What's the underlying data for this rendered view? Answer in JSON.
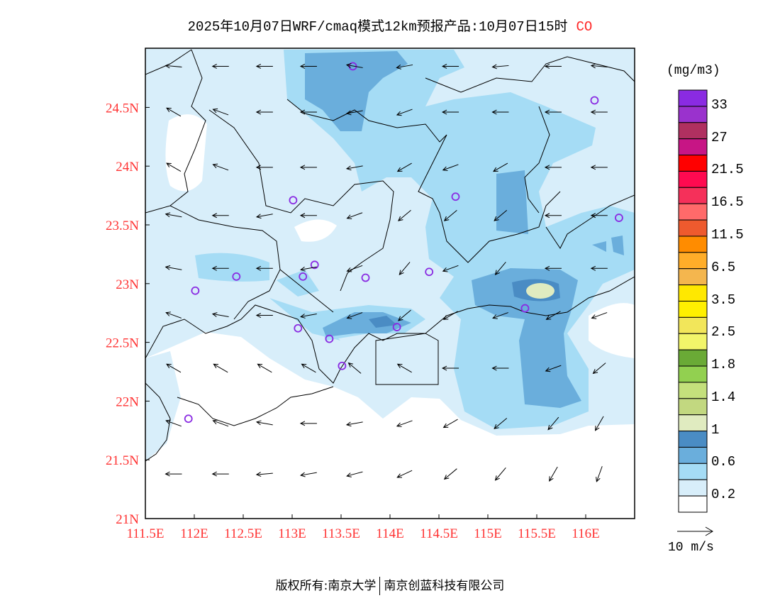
{
  "title": {
    "main": "2025年10月07日WRF/cmaq模式12km预报产品:10月07日15时",
    "species": "CO"
  },
  "colors": {
    "tick_label": "#ff3333",
    "species": "#ff2a2a"
  },
  "map": {
    "lon_range": [
      111.5,
      116.5
    ],
    "lat_range": [
      21.0,
      25.0
    ],
    "x_ticks": [
      "111.5E",
      "112E",
      "112.5E",
      "113E",
      "113.5E",
      "114E",
      "114.5E",
      "115E",
      "115.5E",
      "116E"
    ],
    "x_tick_values": [
      111.5,
      112,
      112.5,
      113,
      113.5,
      114,
      114.5,
      115,
      115.5,
      116
    ],
    "y_ticks": [
      "24.5N",
      "24N",
      "23.5N",
      "23N",
      "22.5N",
      "22N",
      "21.5N",
      "21N"
    ],
    "y_tick_values": [
      24.5,
      24,
      23.5,
      23,
      22.5,
      22,
      21.5,
      21
    ],
    "stations": [
      {
        "lon": 113.62,
        "lat": 24.85
      },
      {
        "lon": 116.09,
        "lat": 24.56
      },
      {
        "lon": 113.01,
        "lat": 23.71
      },
      {
        "lon": 114.67,
        "lat": 23.74
      },
      {
        "lon": 116.34,
        "lat": 23.56
      },
      {
        "lon": 113.23,
        "lat": 23.16
      },
      {
        "lon": 112.43,
        "lat": 23.06
      },
      {
        "lon": 113.11,
        "lat": 23.06
      },
      {
        "lon": 113.75,
        "lat": 23.05
      },
      {
        "lon": 114.4,
        "lat": 23.1
      },
      {
        "lon": 112.01,
        "lat": 22.94
      },
      {
        "lon": 115.38,
        "lat": 22.79
      },
      {
        "lon": 113.06,
        "lat": 22.62
      },
      {
        "lon": 114.07,
        "lat": 22.63
      },
      {
        "lon": 113.38,
        "lat": 22.53
      },
      {
        "lon": 113.51,
        "lat": 22.3
      },
      {
        "lon": 111.94,
        "lat": 21.85
      }
    ],
    "wind": {
      "lons": [
        111.79,
        112.27,
        112.72,
        113.17,
        113.64,
        114.15,
        114.62,
        115.13,
        115.67,
        116.14
      ],
      "lats": [
        24.85,
        24.46,
        23.99,
        23.58,
        23.13,
        22.73,
        22.28,
        21.81,
        21.38
      ],
      "speed_ms": 4.6,
      "direction_deg": [
        [
          175,
          180,
          180,
          180,
          170,
          190,
          180,
          185,
          180,
          175
        ],
        [
          150,
          160,
          180,
          180,
          190,
          200,
          180,
          180,
          180,
          180
        ],
        [
          150,
          160,
          180,
          180,
          190,
          210,
          200,
          210,
          180,
          180
        ],
        [
          170,
          180,
          190,
          180,
          200,
          220,
          220,
          220,
          180,
          180
        ],
        [
          170,
          180,
          180,
          190,
          200,
          230,
          200,
          230,
          180,
          180
        ],
        [
          160,
          170,
          180,
          190,
          200,
          220,
          210,
          200,
          210,
          200
        ],
        [
          150,
          150,
          150,
          150,
          140,
          150,
          180,
          180,
          200,
          220
        ],
        [
          160,
          160,
          170,
          180,
          190,
          200,
          210,
          220,
          230,
          240
        ],
        [
          180,
          180,
          185,
          190,
          195,
          205,
          220,
          230,
          240,
          250
        ]
      ]
    }
  },
  "legend": {
    "unit": "(mg/m3)",
    "colors": [
      "#8a2be2",
      "#9a32cd",
      "#b03060",
      "#c71585",
      "#ff0000",
      "#ff0a50",
      "#f5305a",
      "#ff6a6a",
      "#ee5a2e",
      "#ff8c00",
      "#ffad29",
      "#f4b64e",
      "#ffe800",
      "#fff000",
      "#f2e65a",
      "#f2f56a",
      "#6aaa36",
      "#92d050",
      "#c4e07c",
      "#c2d880",
      "#e0ebc0",
      "#4a8cc4",
      "#6aaedc",
      "#a5dcf5",
      "#d8eefa",
      "#ffffff"
    ],
    "labels": [
      "33",
      "27",
      "21.5",
      "16.5",
      "11.5",
      "6.5",
      "3.5",
      "2.5",
      "1.8",
      "1.4",
      "1",
      "0.6",
      "0.2"
    ],
    "reference_vector": "10 m/s",
    "reference_speed_ms": 10
  },
  "footer": {
    "left": "版权所有:南京大学",
    "right": "南京创蓝科技有限公司"
  }
}
